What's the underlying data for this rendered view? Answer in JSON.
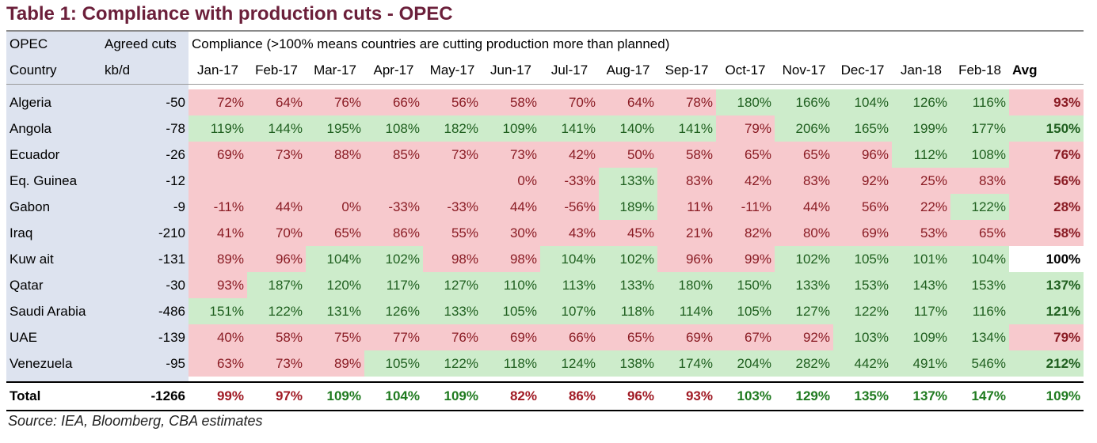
{
  "title": "Table 1: Compliance with production cuts - OPEC",
  "header": {
    "col1_top": "OPEC",
    "col2_top": "Agreed cuts",
    "compliance_note": "Compliance (>100% means countries are cutting production more than planned)",
    "col1_bottom": "Country",
    "col2_bottom": "kb/d",
    "months": [
      "Jan-17",
      "Feb-17",
      "Mar-17",
      "Apr-17",
      "May-17",
      "Jun-17",
      "Jul-17",
      "Aug-17",
      "Sep-17",
      "Oct-17",
      "Nov-17",
      "Dec-17",
      "Jan-18",
      "Feb-18"
    ],
    "avg": "Avg"
  },
  "rows": [
    {
      "country": "Algeria",
      "cut": "-50",
      "values": [
        "72%",
        "64%",
        "76%",
        "66%",
        "56%",
        "58%",
        "70%",
        "64%",
        "78%",
        "180%",
        "166%",
        "104%",
        "126%",
        "116%"
      ],
      "avg": "93%"
    },
    {
      "country": "Angola",
      "cut": "-78",
      "values": [
        "119%",
        "144%",
        "195%",
        "108%",
        "182%",
        "109%",
        "141%",
        "140%",
        "141%",
        "79%",
        "206%",
        "165%",
        "199%",
        "177%"
      ],
      "avg": "150%"
    },
    {
      "country": "Ecuador",
      "cut": "-26",
      "values": [
        "69%",
        "73%",
        "88%",
        "85%",
        "73%",
        "73%",
        "42%",
        "50%",
        "58%",
        "65%",
        "65%",
        "96%",
        "112%",
        "108%"
      ],
      "avg": "76%"
    },
    {
      "country": "Eq. Guinea",
      "cut": "-12",
      "values": [
        "",
        "",
        "",
        "",
        "",
        "0%",
        "-33%",
        "133%",
        "83%",
        "42%",
        "83%",
        "92%",
        "25%",
        "83%"
      ],
      "avg": "56%"
    },
    {
      "country": "Gabon",
      "cut": "-9",
      "values": [
        "-11%",
        "44%",
        "0%",
        "-33%",
        "-33%",
        "44%",
        "-56%",
        "189%",
        "11%",
        "-11%",
        "44%",
        "56%",
        "22%",
        "122%"
      ],
      "avg": "28%"
    },
    {
      "country": "Iraq",
      "cut": "-210",
      "values": [
        "41%",
        "70%",
        "65%",
        "86%",
        "55%",
        "30%",
        "43%",
        "45%",
        "21%",
        "82%",
        "80%",
        "69%",
        "53%",
        "65%"
      ],
      "avg": "58%"
    },
    {
      "country": "Kuw ait",
      "cut": "-131",
      "values": [
        "89%",
        "96%",
        "104%",
        "102%",
        "98%",
        "98%",
        "104%",
        "102%",
        "96%",
        "99%",
        "102%",
        "105%",
        "101%",
        "104%"
      ],
      "avg": "100%"
    },
    {
      "country": "Qatar",
      "cut": "-30",
      "values": [
        "93%",
        "187%",
        "120%",
        "117%",
        "127%",
        "110%",
        "113%",
        "133%",
        "180%",
        "150%",
        "133%",
        "153%",
        "143%",
        "153%"
      ],
      "avg": "137%"
    },
    {
      "country": "Saudi Arabia",
      "cut": "-486",
      "values": [
        "151%",
        "122%",
        "131%",
        "126%",
        "133%",
        "105%",
        "107%",
        "118%",
        "114%",
        "105%",
        "127%",
        "122%",
        "117%",
        "116%"
      ],
      "avg": "121%"
    },
    {
      "country": "UAE",
      "cut": "-139",
      "values": [
        "40%",
        "58%",
        "75%",
        "77%",
        "76%",
        "69%",
        "66%",
        "65%",
        "69%",
        "67%",
        "92%",
        "103%",
        "109%",
        "134%"
      ],
      "avg": "79%"
    },
    {
      "country": "Venezuela",
      "cut": "-95",
      "values": [
        "63%",
        "73%",
        "89%",
        "105%",
        "122%",
        "118%",
        "124%",
        "138%",
        "174%",
        "204%",
        "282%",
        "442%",
        "491%",
        "546%"
      ],
      "avg": "212%"
    }
  ],
  "total": {
    "label": "Total",
    "cut": "-1266",
    "values": [
      "99%",
      "97%",
      "109%",
      "104%",
      "109%",
      "82%",
      "86%",
      "96%",
      "93%",
      "103%",
      "129%",
      "135%",
      "137%",
      "147%"
    ],
    "avg": "109%"
  },
  "colors": {
    "title": "#6b1f3a",
    "label_bg": "#dde3ef",
    "green_bg": "#cdeccb",
    "red_bg": "#f7c9cd"
  },
  "source": "Source: IEA, Bloomberg, CBA estimates"
}
